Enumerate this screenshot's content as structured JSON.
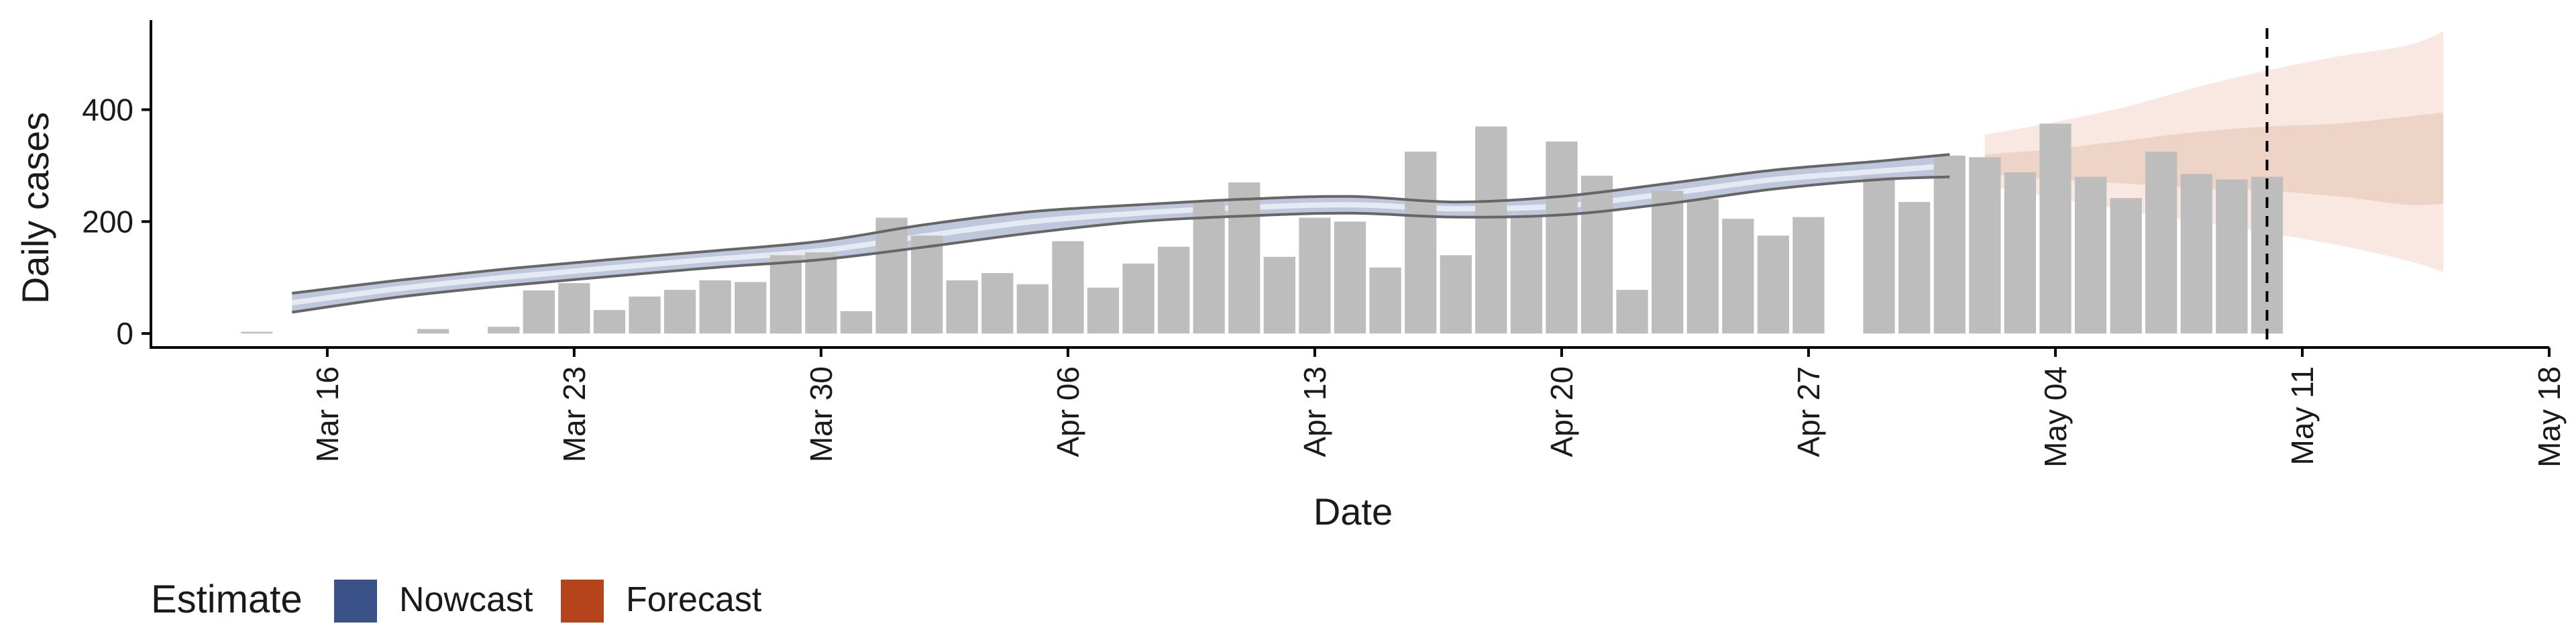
{
  "chart_data": {
    "type": "bar",
    "ylabel": "Daily cases",
    "xlabel": "Date",
    "ylim": [
      -25,
      560
    ],
    "xlim": [
      "2020-03-11",
      "2020-05-18"
    ],
    "x_ticks": [
      "2020-03-16",
      "2020-03-23",
      "2020-03-30",
      "2020-04-06",
      "2020-04-13",
      "2020-04-20",
      "2020-04-27",
      "2020-05-04",
      "2020-05-11",
      "2020-05-18"
    ],
    "x_tick_labels": [
      "Mar 16",
      "Mar 23",
      "Mar 30",
      "Apr 06",
      "Apr 13",
      "Apr 20",
      "Apr 27",
      "May 04",
      "May 11",
      "May 18"
    ],
    "y_ticks": [
      0,
      200,
      400
    ],
    "y_tick_labels": [
      "0",
      "200",
      "400"
    ],
    "grid": false,
    "bars": {
      "dates": [
        "2020-03-14",
        "2020-03-15",
        "2020-03-16",
        "2020-03-17",
        "2020-03-18",
        "2020-03-19",
        "2020-03-20",
        "2020-03-21",
        "2020-03-22",
        "2020-03-23",
        "2020-03-24",
        "2020-03-25",
        "2020-03-26",
        "2020-03-27",
        "2020-03-28",
        "2020-03-29",
        "2020-03-30",
        "2020-03-31",
        "2020-04-01",
        "2020-04-02",
        "2020-04-03",
        "2020-04-04",
        "2020-04-05",
        "2020-04-06",
        "2020-04-07",
        "2020-04-08",
        "2020-04-09",
        "2020-04-10",
        "2020-04-11",
        "2020-04-12",
        "2020-04-13",
        "2020-04-14",
        "2020-04-15",
        "2020-04-16",
        "2020-04-17",
        "2020-04-18",
        "2020-04-19",
        "2020-04-20",
        "2020-04-21",
        "2020-04-22",
        "2020-04-23",
        "2020-04-24",
        "2020-04-25",
        "2020-04-26",
        "2020-04-27",
        "2020-04-28",
        "2020-04-29",
        "2020-04-30",
        "2020-05-01",
        "2020-05-02",
        "2020-05-03",
        "2020-05-04",
        "2020-05-05",
        "2020-05-06",
        "2020-05-07",
        "2020-05-08",
        "2020-05-09",
        "2020-05-10"
      ],
      "values": [
        3,
        0,
        0,
        0,
        0,
        8,
        0,
        12,
        77,
        90,
        42,
        66,
        78,
        95,
        92,
        140,
        145,
        40,
        207,
        175,
        95,
        108,
        88,
        165,
        82,
        125,
        155,
        238,
        270,
        137,
        207,
        200,
        118,
        325,
        140,
        370,
        210,
        343,
        282,
        78,
        255,
        240,
        205,
        175,
        208,
        0,
        280,
        235,
        318,
        315,
        288,
        375,
        280,
        242,
        325,
        285,
        275,
        280
      ]
    },
    "series": [
      {
        "name": "Nowcast",
        "dates": [
          "2020-03-15",
          "2020-03-18",
          "2020-03-21",
          "2020-03-24",
          "2020-03-27",
          "2020-03-30",
          "2020-04-02",
          "2020-04-05",
          "2020-04-08",
          "2020-04-11",
          "2020-04-14",
          "2020-04-17",
          "2020-04-20",
          "2020-04-23",
          "2020-04-26",
          "2020-04-29",
          "2020-05-01"
        ],
        "median": [
          55,
          80,
          100,
          117,
          133,
          148,
          175,
          200,
          215,
          225,
          230,
          223,
          228,
          250,
          275,
          290,
          300
        ],
        "lower_90": [
          38,
          65,
          85,
          102,
          118,
          132,
          155,
          180,
          200,
          210,
          215,
          208,
          212,
          232,
          258,
          275,
          280
        ],
        "upper_90": [
          72,
          95,
          115,
          132,
          148,
          165,
          195,
          218,
          230,
          240,
          245,
          235,
          245,
          268,
          292,
          308,
          320
        ],
        "color": "#3b5288"
      },
      {
        "name": "Forecast",
        "dates": [
          "2020-05-02",
          "2020-05-04",
          "2020-05-06",
          "2020-05-08",
          "2020-05-10",
          "2020-05-12",
          "2020-05-14",
          "2020-05-15"
        ],
        "lower_90": [
          265,
          242,
          220,
          200,
          180,
          158,
          130,
          110
        ],
        "lower_50": [
          285,
          275,
          268,
          260,
          255,
          245,
          230,
          232
        ],
        "upper_50": [
          320,
          330,
          345,
          360,
          370,
          375,
          388,
          395
        ],
        "upper_90": [
          355,
          378,
          405,
          440,
          470,
          495,
          515,
          540
        ],
        "color": "#b5441c"
      }
    ],
    "vline_date": "2020-05-10",
    "legend": {
      "title": "Estimate",
      "position": "bottom-left",
      "entries": [
        {
          "label": "Nowcast",
          "color": "#3b5288"
        },
        {
          "label": "Forecast",
          "color": "#b5441c"
        }
      ]
    },
    "colors": {
      "bars": "#bdbdbd",
      "nowcast_band": "#b3bdd6",
      "nowcast_line": "#e6eaf3",
      "forecast_band_inner": "#ecd0c4",
      "forecast_band_outer": "#f7e5de",
      "outline": "#666666",
      "vline": "#000000"
    }
  }
}
